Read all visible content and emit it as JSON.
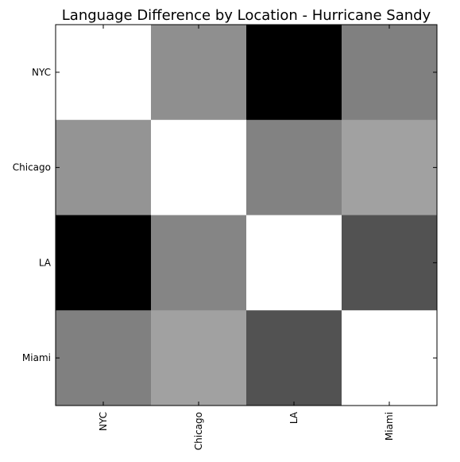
{
  "chart_data": {
    "type": "heatmap",
    "title": "Language Difference by Location - Hurricane Sandy",
    "x_categories": [
      "NYC",
      "Chicago",
      "LA",
      "Miami"
    ],
    "y_categories": [
      "NYC",
      "Chicago",
      "LA",
      "Miami"
    ],
    "values": [
      [
        1.0,
        0.56,
        0.0,
        0.5
      ],
      [
        0.58,
        1.0,
        0.51,
        0.63
      ],
      [
        0.0,
        0.52,
        1.0,
        0.32
      ],
      [
        0.5,
        0.63,
        0.32,
        1.0
      ]
    ],
    "colormap": "gray",
    "vlim": [
      0,
      1
    ]
  }
}
